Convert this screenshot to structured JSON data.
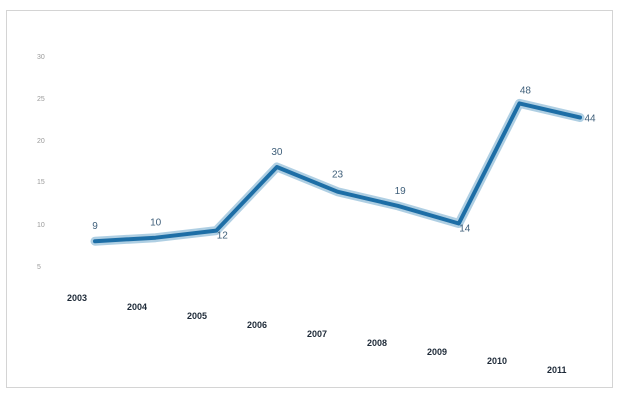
{
  "chart_data": {
    "type": "line",
    "title": "",
    "xlabel": "",
    "ylabel": "",
    "categories": [
      "2003",
      "2004",
      "2005",
      "2006",
      "2007",
      "2008",
      "2009",
      "2010",
      "2011"
    ],
    "series": [
      {
        "values": [
          9,
          10,
          12,
          30,
          23,
          19,
          14,
          48,
          44
        ],
        "data_labels": [
          "9",
          "10",
          "12",
          "30",
          "23",
          "19",
          "14",
          "48",
          "44"
        ]
      }
    ],
    "y_ticks": [
      "",
      "5",
      "10",
      "15",
      "20",
      "25",
      "30"
    ],
    "ylim": [
      0,
      60
    ],
    "grid": false,
    "legend": "none",
    "colors": {
      "line": "#1d6ea6",
      "line_glow": "#9bc3dc",
      "frame_border": "#d4d4d4"
    }
  }
}
